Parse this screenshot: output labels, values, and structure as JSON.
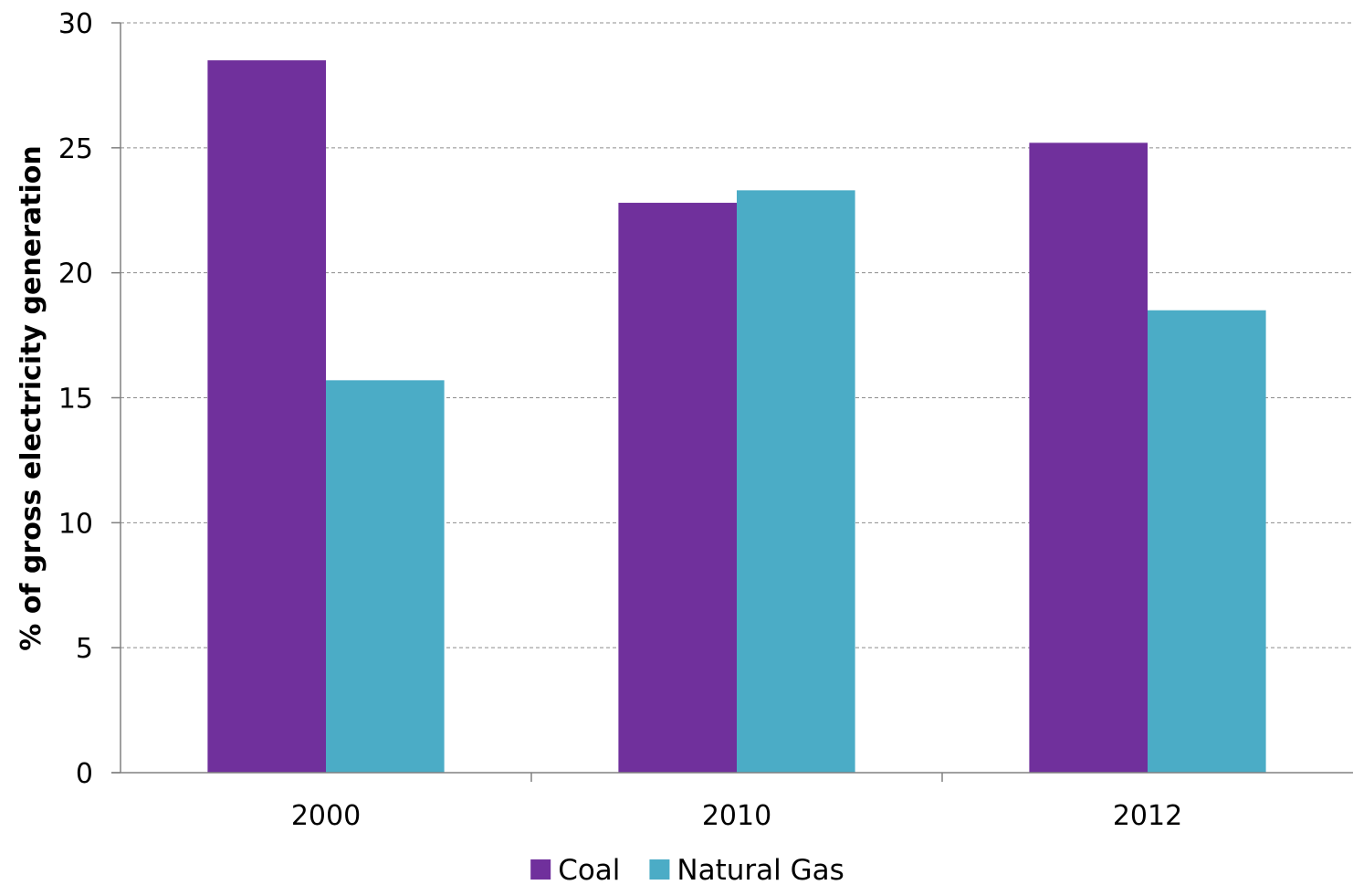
{
  "chart_data": {
    "type": "bar",
    "title": "",
    "xlabel": "",
    "ylabel": "% of gross electricity generation",
    "categories": [
      "2000",
      "2010",
      "2012"
    ],
    "series": [
      {
        "name": "Coal",
        "values": [
          28.5,
          22.8,
          25.2
        ],
        "color": "#70309C"
      },
      {
        "name": "Natural Gas",
        "values": [
          15.7,
          23.3,
          18.5
        ],
        "color": "#4BACC6"
      }
    ],
    "ylim": [
      0,
      30
    ],
    "yticks": [
      "0",
      "5",
      "10",
      "15",
      "20",
      "25",
      "30"
    ],
    "grid": true,
    "legend_position": "bottom-center"
  }
}
